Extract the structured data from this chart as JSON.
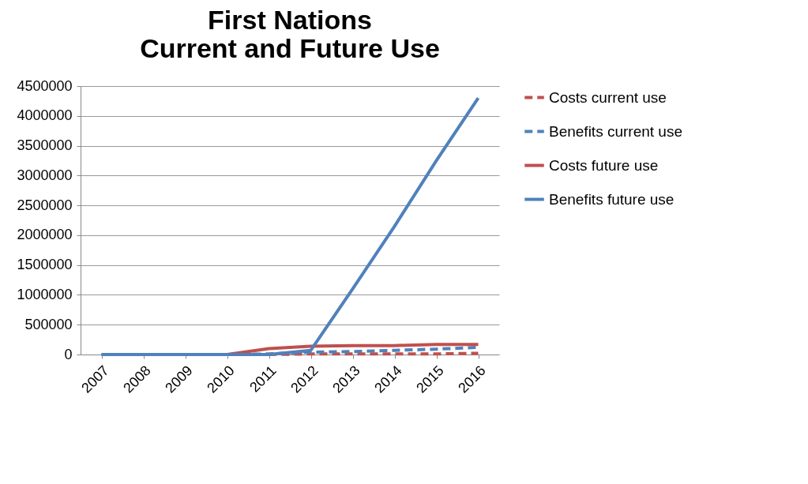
{
  "chart_data": {
    "type": "line",
    "title": [
      "First Nations",
      "Current and Future Use"
    ],
    "categories": [
      "2007",
      "2008",
      "2009",
      "2010",
      "2011",
      "2012",
      "2013",
      "2014",
      "2015",
      "2016"
    ],
    "series": [
      {
        "name": "Costs current use",
        "color": "#c0504d",
        "line_style": "dashed",
        "values": [
          null,
          null,
          null,
          null,
          0,
          10000,
          10000,
          10000,
          10000,
          20000
        ]
      },
      {
        "name": "Benefits current use",
        "color": "#4f81bd",
        "line_style": "dashed",
        "values": [
          0,
          0,
          0,
          0,
          10000,
          40000,
          50000,
          70000,
          90000,
          120000
        ]
      },
      {
        "name": "Costs future use",
        "color": "#c0504d",
        "line_style": "solid",
        "values": [
          null,
          null,
          null,
          0,
          100000,
          140000,
          150000,
          150000,
          170000,
          170000
        ]
      },
      {
        "name": "Benefits future use",
        "color": "#4f81bd",
        "line_style": "solid",
        "values": [
          0,
          0,
          0,
          0,
          0,
          70000,
          1100000,
          2150000,
          3250000,
          4300000
        ]
      }
    ],
    "ylim": [
      0,
      4500000
    ],
    "yticks": [
      0,
      500000,
      1000000,
      1500000,
      2000000,
      2500000,
      3000000,
      3500000,
      4000000,
      4500000
    ],
    "grid": "y",
    "legend": "right",
    "marker": "none"
  }
}
